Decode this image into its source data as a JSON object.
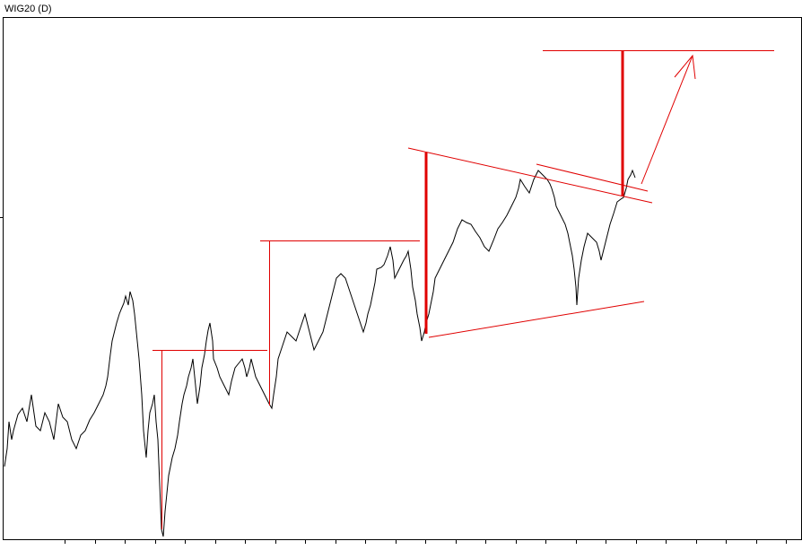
{
  "title": "WIG20 (D)"
}
